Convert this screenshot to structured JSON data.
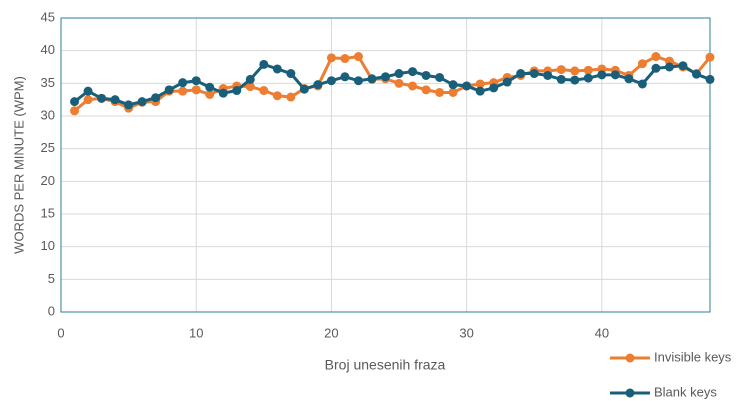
{
  "chart_data": {
    "type": "line",
    "x_label": "Broj unesenih fraza",
    "y_label": "WORDS PER MINUTE (WPM)",
    "x": [
      1,
      2,
      3,
      4,
      5,
      6,
      7,
      8,
      9,
      10,
      11,
      12,
      13,
      14,
      15,
      16,
      17,
      18,
      19,
      20,
      21,
      22,
      23,
      24,
      25,
      26,
      27,
      28,
      29,
      30,
      31,
      32,
      33,
      34,
      35,
      36,
      37,
      38,
      39,
      40,
      41,
      42,
      43,
      44,
      45,
      46,
      47,
      48
    ],
    "series": [
      {
        "name": "Invisible keys",
        "color": "#ed7d31",
        "values": [
          30.8,
          32.5,
          32.7,
          32.2,
          31.2,
          32.1,
          32.2,
          33.8,
          33.8,
          34.0,
          33.3,
          34.2,
          34.6,
          34.5,
          33.9,
          33.1,
          32.9,
          34.2,
          34.6,
          38.9,
          38.8,
          39.1,
          35.6,
          35.7,
          35.0,
          34.6,
          34.0,
          33.6,
          33.6,
          34.6,
          34.9,
          35.1,
          35.9,
          36.2,
          36.9,
          36.9,
          37.1,
          36.9,
          37.0,
          37.2,
          37.0,
          36.2,
          38.0,
          39.1,
          38.4,
          37.5,
          36.5,
          39.0
        ]
      },
      {
        "name": "Blank keys",
        "color": "#1a5f7a",
        "values": [
          32.2,
          33.8,
          32.7,
          32.5,
          31.7,
          32.2,
          32.8,
          34.0,
          35.1,
          35.4,
          34.4,
          33.5,
          33.9,
          35.6,
          37.9,
          37.2,
          36.5,
          34.1,
          34.8,
          35.4,
          36.0,
          35.4,
          35.7,
          36.0,
          36.5,
          36.8,
          36.2,
          35.9,
          34.8,
          34.6,
          33.8,
          34.3,
          35.2,
          36.5,
          36.5,
          36.2,
          35.6,
          35.5,
          35.8,
          36.3,
          36.3,
          35.7,
          34.9,
          37.3,
          37.5,
          37.7,
          36.4,
          35.6
        ]
      }
    ],
    "xlim": [
      0,
      48
    ],
    "xticks": [
      0,
      10,
      20,
      30,
      40
    ],
    "ylim": [
      0,
      45
    ],
    "yticks": [
      0,
      5,
      10,
      15,
      20,
      25,
      30,
      35,
      40,
      45
    ],
    "grid": true,
    "legend": "bottom-right"
  }
}
